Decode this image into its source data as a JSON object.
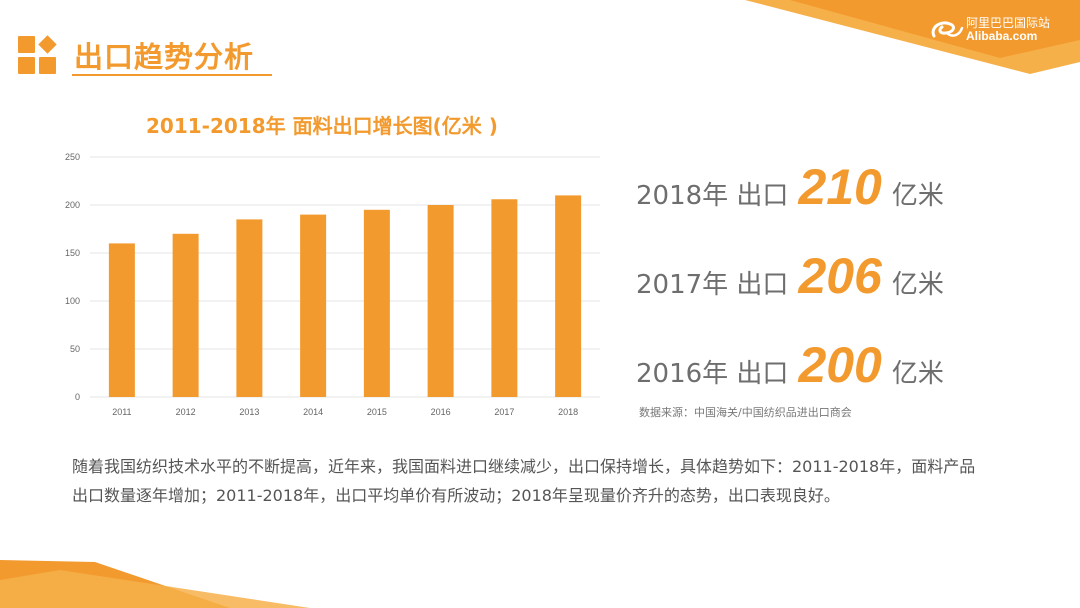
{
  "header": {
    "title": "出口趋势分析",
    "brand_cn": "阿里巴巴国际站",
    "brand_en": "Alibaba.com"
  },
  "chart_data": {
    "type": "bar",
    "title": "2011-2018年 面料出口增长图(亿米 )",
    "categories": [
      "2011",
      "2012",
      "2013",
      "2014",
      "2015",
      "2016",
      "2017",
      "2018"
    ],
    "values": [
      160,
      170,
      185,
      190,
      195,
      200,
      206,
      210
    ],
    "ylim": [
      0,
      250
    ],
    "yticks": [
      0,
      50,
      100,
      150,
      200,
      250
    ],
    "grid": true,
    "color": "#f29a2e"
  },
  "stats": [
    {
      "label": "2018年 出口",
      "value": "210",
      "unit": "亿米"
    },
    {
      "label": "2017年 出口",
      "value": "206",
      "unit": "亿米"
    },
    {
      "label": "2016年 出口",
      "value": "200",
      "unit": "亿米"
    }
  ],
  "source": "数据来源：中国海关/中国纺织品进出口商会",
  "body": "随着我国纺织技术水平的不断提高，近年来，我国面料进口继续减少，出口保持增长，具体趋势如下：2011-2018年，面料产品出口数量逐年增加；2011-2018年，出口平均单价有所波动；2018年呈现量价齐升的态势，出口表现良好。",
  "colors": {
    "accent": "#f29a2e",
    "accent_light": "#f7b95c",
    "text": "#555555"
  }
}
